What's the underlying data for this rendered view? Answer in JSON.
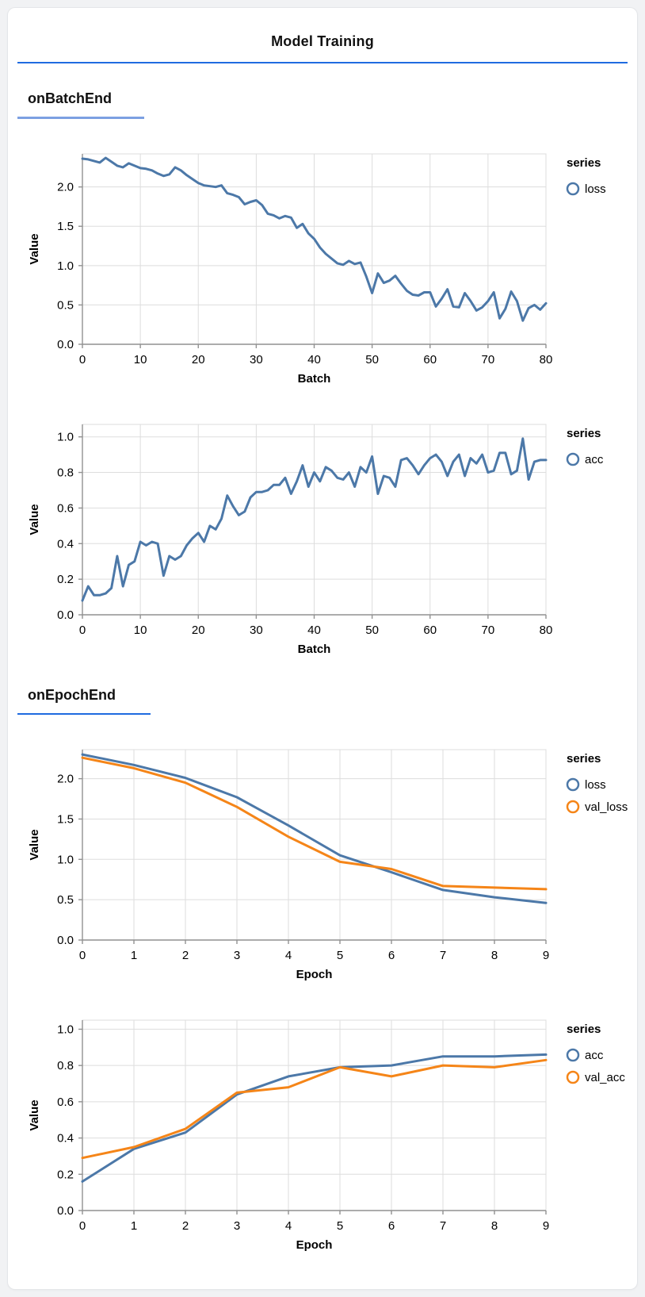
{
  "page": {
    "title": "Model Training",
    "sections": [
      {
        "title": "onBatchEnd",
        "underline_color": "#7ca0e2"
      },
      {
        "title": "onEpochEnd",
        "underline_color": "#1f6be0"
      }
    ]
  },
  "colors": {
    "title_underline": "#1f6be0",
    "grid": "#dddddd",
    "axis": "#919191",
    "label": "#000000",
    "series_blue": "#4c78a8",
    "series_orange": "#f58518",
    "card_background": "#ffffff",
    "page_background": "#f1f2f4"
  },
  "chart_data": [
    {
      "type": "line",
      "section": "onBatchEnd",
      "xlabel": "Batch",
      "ylabel": "Value",
      "xlim": [
        0,
        80
      ],
      "ylim": [
        0,
        2.42
      ],
      "x_ticks": [
        0,
        10,
        20,
        30,
        40,
        50,
        60,
        70,
        80
      ],
      "y_ticks": [
        0,
        0.5,
        1.0,
        1.5,
        2.0
      ],
      "y_tick_decimals": 1,
      "grid": true,
      "legend_title": "series",
      "legend_position": "top-right",
      "series": [
        {
          "name": "loss",
          "color": "#4c78a8",
          "values": [
            2.36,
            2.35,
            2.33,
            2.31,
            2.37,
            2.32,
            2.27,
            2.25,
            2.3,
            2.27,
            2.24,
            2.23,
            2.21,
            2.17,
            2.14,
            2.16,
            2.25,
            2.21,
            2.15,
            2.1,
            2.05,
            2.02,
            2.01,
            2.0,
            2.02,
            1.92,
            1.9,
            1.87,
            1.78,
            1.81,
            1.83,
            1.77,
            1.66,
            1.64,
            1.6,
            1.63,
            1.61,
            1.48,
            1.53,
            1.41,
            1.34,
            1.23,
            1.15,
            1.09,
            1.03,
            1.01,
            1.06,
            1.02,
            1.04,
            0.86,
            0.65,
            0.9,
            0.78,
            0.81,
            0.87,
            0.77,
            0.68,
            0.63,
            0.62,
            0.66,
            0.66,
            0.48,
            0.58,
            0.7,
            0.48,
            0.47,
            0.65,
            0.55,
            0.43,
            0.47,
            0.55,
            0.66,
            0.33,
            0.45,
            0.67,
            0.55,
            0.3,
            0.46,
            0.5,
            0.44,
            0.52
          ]
        }
      ]
    },
    {
      "type": "line",
      "section": "onBatchEnd",
      "xlabel": "Batch",
      "ylabel": "Value",
      "xlim": [
        0,
        80
      ],
      "ylim": [
        0,
        1.07
      ],
      "x_ticks": [
        0,
        10,
        20,
        30,
        40,
        50,
        60,
        70,
        80
      ],
      "y_ticks": [
        0,
        0.2,
        0.4,
        0.6,
        0.8,
        1.0
      ],
      "y_tick_decimals": 1,
      "grid": true,
      "legend_title": "series",
      "legend_position": "top-right",
      "series": [
        {
          "name": "acc",
          "color": "#4c78a8",
          "values": [
            0.08,
            0.16,
            0.11,
            0.11,
            0.12,
            0.15,
            0.33,
            0.16,
            0.28,
            0.3,
            0.41,
            0.39,
            0.41,
            0.4,
            0.22,
            0.33,
            0.31,
            0.33,
            0.39,
            0.43,
            0.46,
            0.41,
            0.5,
            0.48,
            0.54,
            0.67,
            0.61,
            0.56,
            0.58,
            0.66,
            0.69,
            0.69,
            0.7,
            0.73,
            0.73,
            0.77,
            0.68,
            0.75,
            0.84,
            0.72,
            0.8,
            0.75,
            0.83,
            0.81,
            0.77,
            0.76,
            0.8,
            0.72,
            0.83,
            0.8,
            0.89,
            0.68,
            0.78,
            0.77,
            0.72,
            0.87,
            0.88,
            0.84,
            0.79,
            0.84,
            0.88,
            0.9,
            0.86,
            0.78,
            0.86,
            0.9,
            0.78,
            0.88,
            0.85,
            0.9,
            0.8,
            0.81,
            0.91,
            0.91,
            0.79,
            0.81,
            0.99,
            0.76,
            0.86,
            0.87,
            0.87
          ]
        }
      ]
    },
    {
      "type": "line",
      "section": "onEpochEnd",
      "xlabel": "Epoch",
      "ylabel": "Value",
      "xlim": [
        0,
        9
      ],
      "ylim": [
        0,
        2.36
      ],
      "x_ticks": [
        0,
        1,
        2,
        3,
        4,
        5,
        6,
        7,
        8,
        9
      ],
      "y_ticks": [
        0,
        0.5,
        1.0,
        1.5,
        2.0
      ],
      "y_tick_decimals": 1,
      "grid": true,
      "legend_title": "series",
      "legend_position": "top-right",
      "series": [
        {
          "name": "loss",
          "color": "#4c78a8",
          "values": [
            2.3,
            2.17,
            2.01,
            1.77,
            1.42,
            1.05,
            0.84,
            0.62,
            0.53,
            0.46
          ]
        },
        {
          "name": "val_loss",
          "color": "#f58518",
          "values": [
            2.26,
            2.13,
            1.95,
            1.65,
            1.28,
            0.97,
            0.88,
            0.67,
            0.65,
            0.63
          ]
        }
      ]
    },
    {
      "type": "line",
      "section": "onEpochEnd",
      "xlabel": "Epoch",
      "ylabel": "Value",
      "xlim": [
        0,
        9
      ],
      "ylim": [
        0,
        1.05
      ],
      "x_ticks": [
        0,
        1,
        2,
        3,
        4,
        5,
        6,
        7,
        8,
        9
      ],
      "y_ticks": [
        0,
        0.2,
        0.4,
        0.6,
        0.8,
        1.0
      ],
      "y_tick_decimals": 1,
      "grid": true,
      "legend_title": "series",
      "legend_position": "top-right",
      "series": [
        {
          "name": "acc",
          "color": "#4c78a8",
          "values": [
            0.16,
            0.34,
            0.43,
            0.64,
            0.74,
            0.79,
            0.8,
            0.85,
            0.85,
            0.86
          ]
        },
        {
          "name": "val_acc",
          "color": "#f58518",
          "values": [
            0.29,
            0.35,
            0.45,
            0.65,
            0.68,
            0.79,
            0.74,
            0.8,
            0.79,
            0.83
          ]
        }
      ]
    }
  ]
}
